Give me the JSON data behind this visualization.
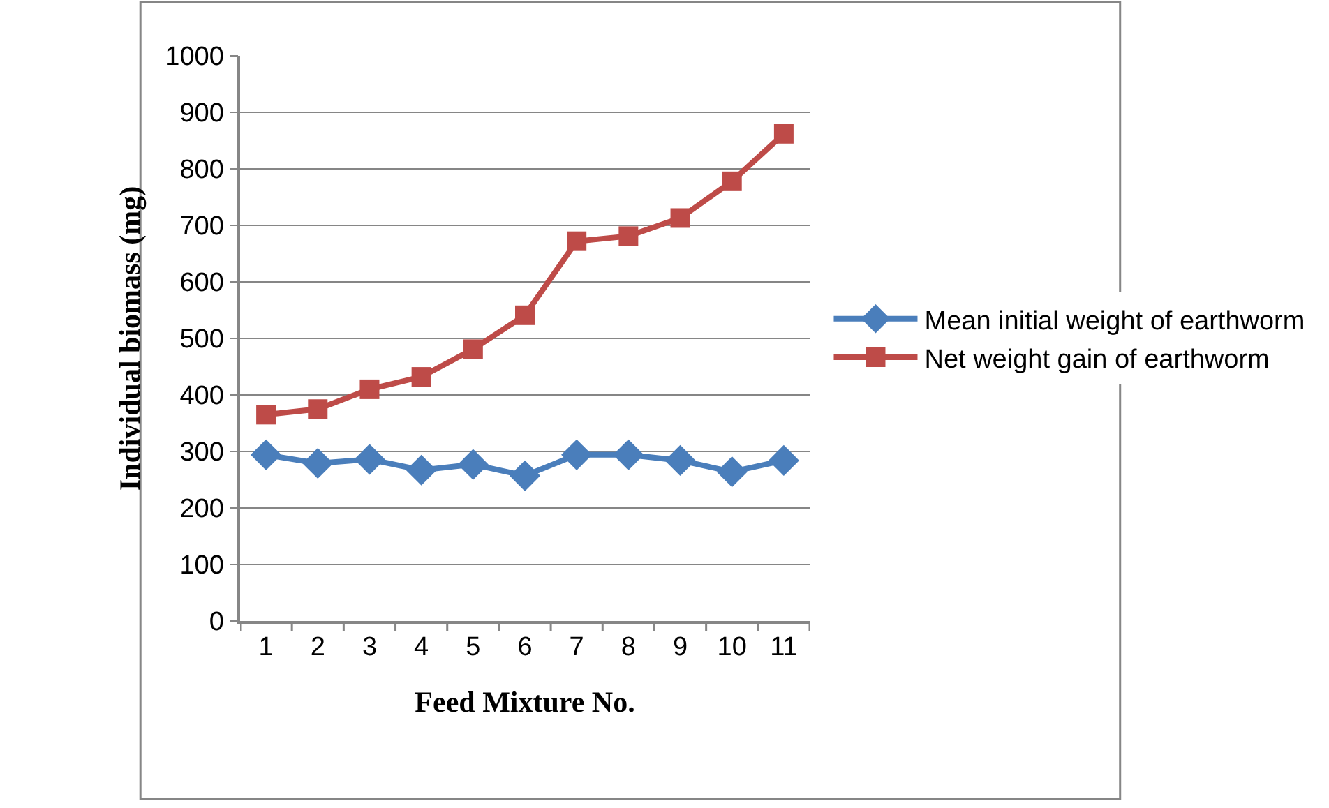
{
  "chart_data": {
    "type": "line",
    "xlabel": "Feed Mixture No.",
    "ylabel": "Individual biomass (mg)",
    "categories": [
      "1",
      "2",
      "3",
      "4",
      "5",
      "6",
      "7",
      "8",
      "9",
      "10",
      "11"
    ],
    "series": [
      {
        "name": "Mean initial weight of earthworm",
        "color": "#4a7ebb",
        "marker": "diamond",
        "values": [
          294,
          279,
          286,
          267,
          277,
          257,
          294,
          294,
          284,
          264,
          284
        ]
      },
      {
        "name": "Net weight gain of earthworm",
        "color": "#be4b48",
        "marker": "square",
        "values": [
          365,
          375,
          410,
          432,
          481,
          541,
          672,
          681,
          713,
          778,
          862
        ]
      }
    ],
    "ylim": [
      0,
      1000
    ],
    "yticks": [
      0,
      100,
      200,
      300,
      400,
      500,
      600,
      700,
      800,
      900,
      1000
    ],
    "grid": "y",
    "legend": "right",
    "line_style": "solid"
  }
}
